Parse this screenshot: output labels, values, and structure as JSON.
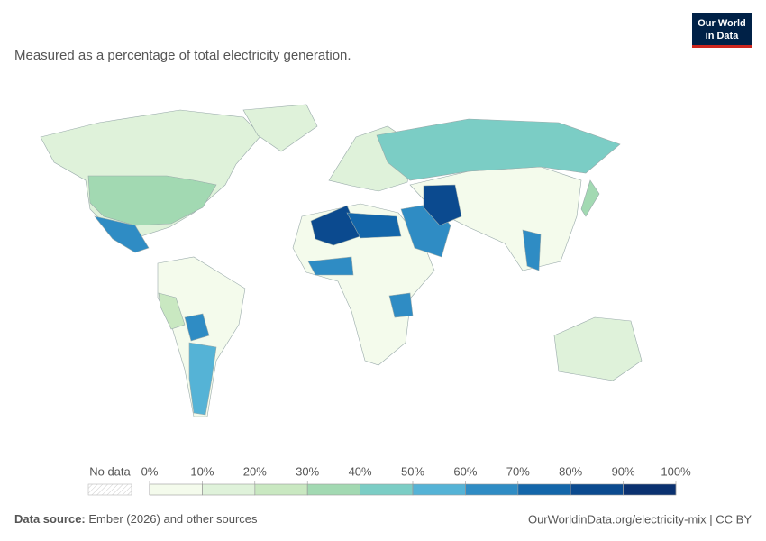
{
  "header": {
    "subtitle": "Measured as a percentage of total electricity generation.",
    "logo": [
      "Our World",
      "in Data"
    ]
  },
  "legend": {
    "no_data": "No data",
    "range": [
      0,
      100
    ],
    "ticks": [
      {
        "value": 0,
        "label": "0%"
      },
      {
        "value": 10,
        "label": "10%"
      },
      {
        "value": 20,
        "label": "20%"
      },
      {
        "value": 30,
        "label": "30%"
      },
      {
        "value": 40,
        "label": "40%"
      },
      {
        "value": 50,
        "label": "50%"
      },
      {
        "value": 60,
        "label": "60%"
      },
      {
        "value": 70,
        "label": "70%"
      },
      {
        "value": 80,
        "label": "80%"
      },
      {
        "value": 90,
        "label": "90%"
      },
      {
        "value": 100,
        "label": "100%"
      }
    ],
    "colors": [
      "#f4fbec",
      "#dff2da",
      "#c9e8c1",
      "#a2d9b2",
      "#7bcdc5",
      "#55b3d6",
      "#2f8cc4",
      "#1366aa",
      "#0b4a8f",
      "#0a3170"
    ]
  },
  "footer": {
    "source_label": "Data source:",
    "source": "Ember (2026) and other sources",
    "url": "OurWorldinData.org/electricity-mix | CC BY"
  }
}
